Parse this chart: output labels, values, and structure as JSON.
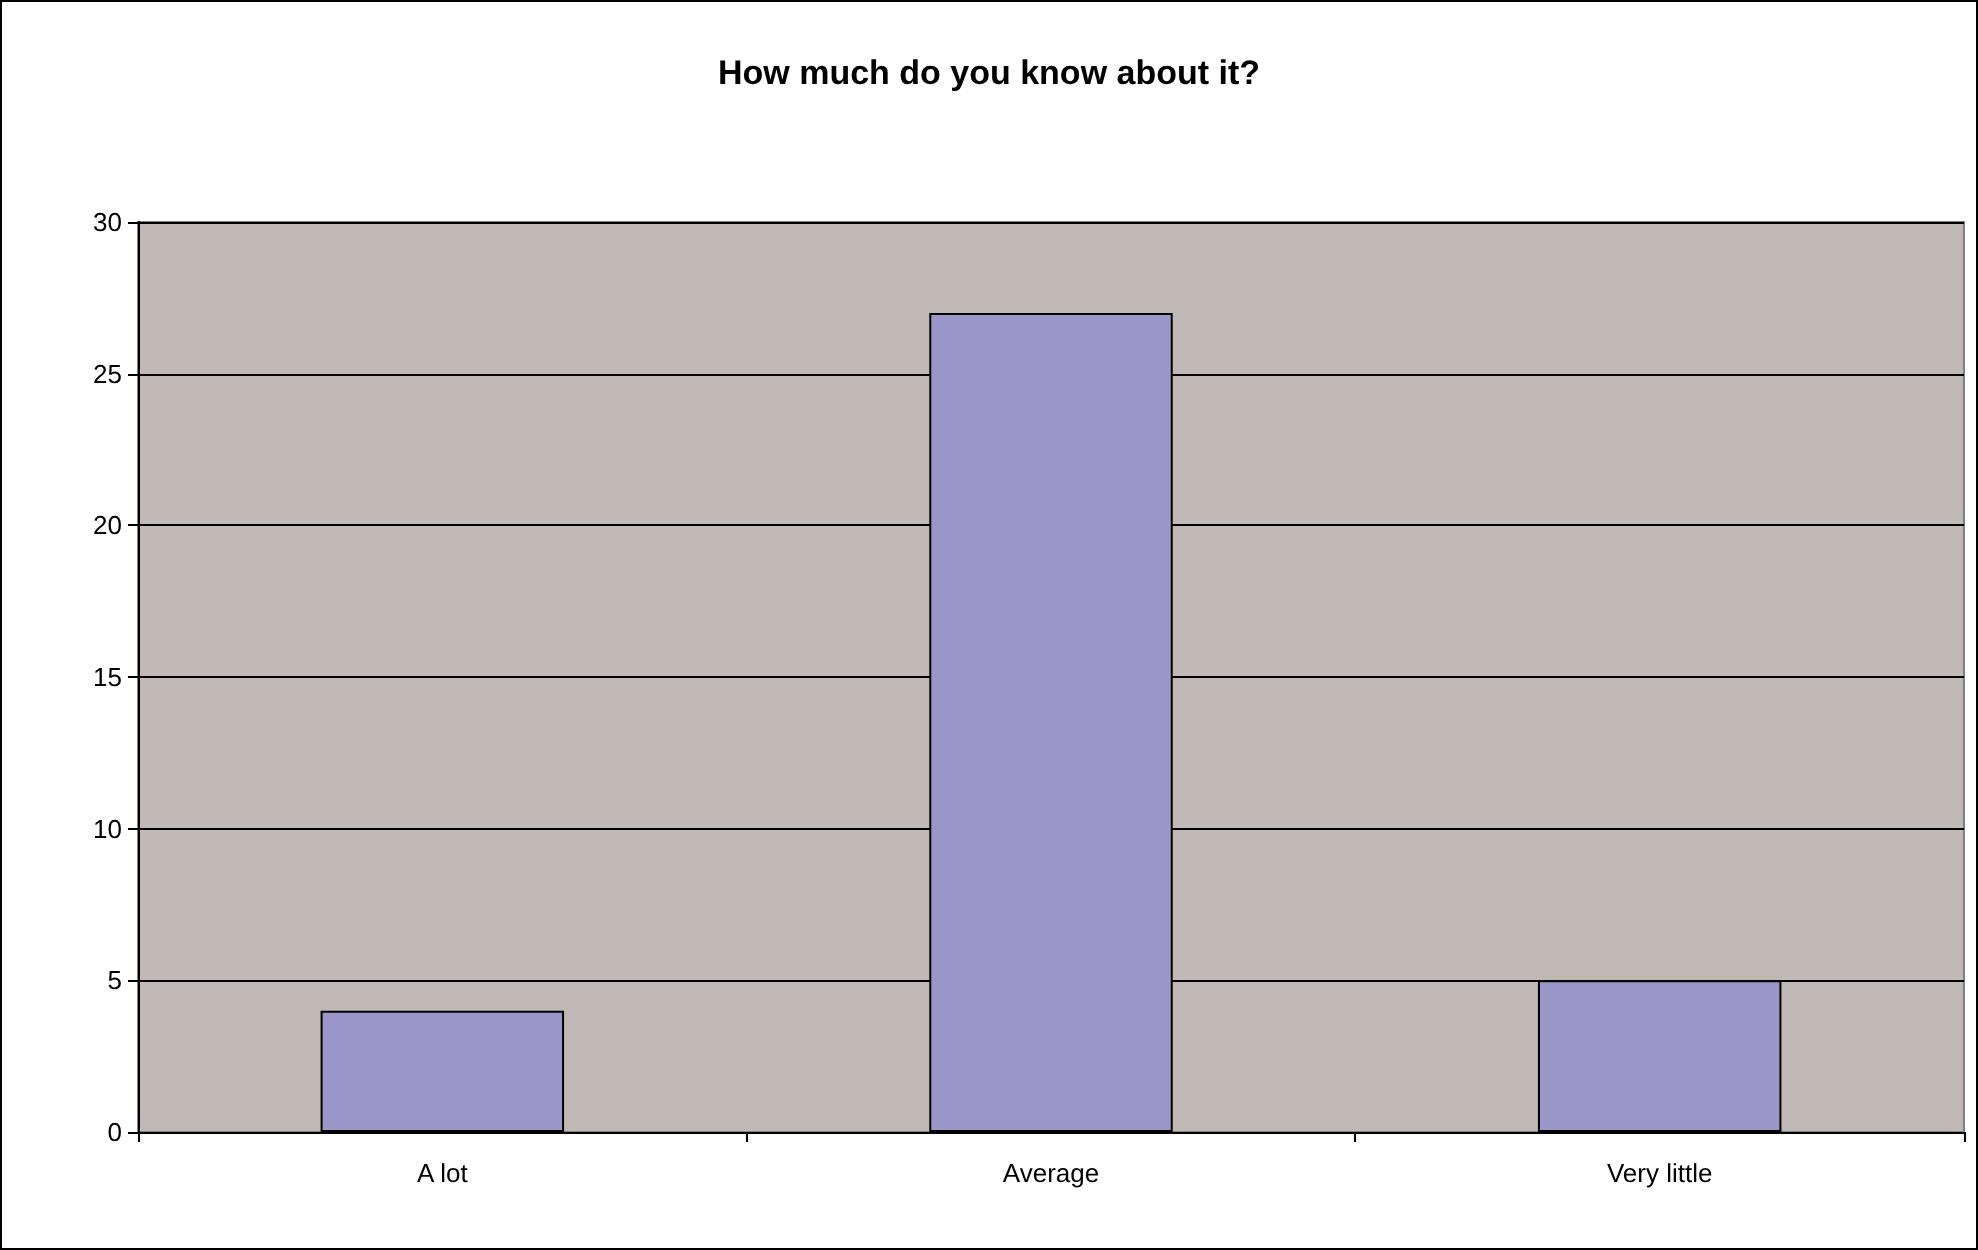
{
  "chart_data": {
    "type": "bar",
    "title": "How much do you know about it?",
    "categories": [
      "A lot",
      "Average",
      "Very little"
    ],
    "values": [
      4,
      27,
      5
    ],
    "color": "#9c97c9",
    "ylim": [
      0,
      30
    ],
    "yticks": [
      0,
      5,
      10,
      15,
      20,
      25,
      30
    ],
    "grid": "y"
  }
}
